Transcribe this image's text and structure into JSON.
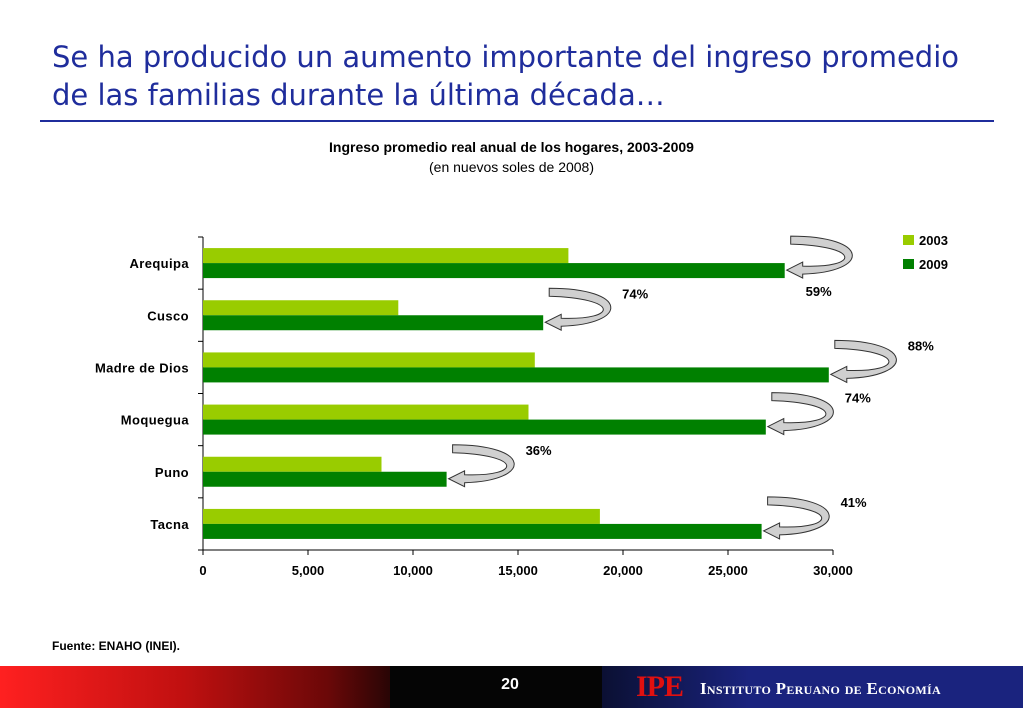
{
  "slide": {
    "title": "Se ha producido un aumento importante del ingreso promedio de las familias durante la última década…",
    "source": "Fuente: ENAHO (INEI).",
    "page_number": "20",
    "logo_text": "IPE",
    "institution": "Instituto Peruano de Economía"
  },
  "colors": {
    "title": "#1f2d9c",
    "series_2003": "#99cc00",
    "series_2009": "#008000"
  },
  "chart_data": {
    "type": "bar",
    "orientation": "horizontal",
    "title": "Ingreso promedio real anual de los hogares, 2003-2009",
    "subtitle": "(en nuevos soles de 2008)",
    "categories": [
      "Arequipa",
      "Cusco",
      "Madre de Dios",
      "Moquegua",
      "Puno",
      "Tacna"
    ],
    "series": [
      {
        "name": "2003",
        "values": [
          17400,
          9300,
          15800,
          15500,
          8500,
          18900
        ]
      },
      {
        "name": "2009",
        "values": [
          27700,
          16200,
          29800,
          26800,
          11600,
          26600
        ]
      }
    ],
    "growth_labels": [
      "59%",
      "74%",
      "88%",
      "74%",
      "36%",
      "41%"
    ],
    "xlim": [
      0,
      30000
    ],
    "xticks": [
      "0",
      "5,000",
      "10,000",
      "15,000",
      "20,000",
      "25,000",
      "30,000"
    ],
    "xtick_values": [
      0,
      5000,
      10000,
      15000,
      20000,
      25000,
      30000
    ],
    "legend": "top-right",
    "grid": false
  }
}
